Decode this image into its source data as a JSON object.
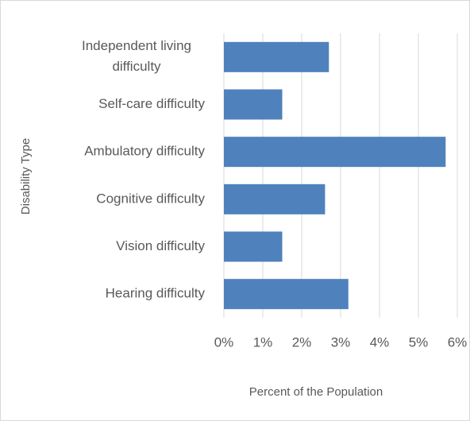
{
  "chart_data": {
    "type": "barh",
    "categories": [
      "Independent living difficulty",
      "Self-care difficulty",
      "Ambulatory difficulty",
      "Cognitive difficulty",
      "Vision difficulty",
      "Hearing difficulty"
    ],
    "values": [
      2.7,
      1.5,
      5.7,
      2.6,
      1.5,
      3.2
    ],
    "color": "#4f81bd",
    "xlabel": "Percent of the Population",
    "ylabel": "Disability Type",
    "xlim": [
      0,
      6
    ],
    "xticks": [
      {
        "value": 0,
        "label": "0%"
      },
      {
        "value": 1,
        "label": "1%"
      },
      {
        "value": 2,
        "label": "2%"
      },
      {
        "value": 3,
        "label": "3%"
      },
      {
        "value": 4,
        "label": "4%"
      },
      {
        "value": 5,
        "label": "5%"
      },
      {
        "value": 6,
        "label": "6%"
      }
    ],
    "grid": true
  }
}
